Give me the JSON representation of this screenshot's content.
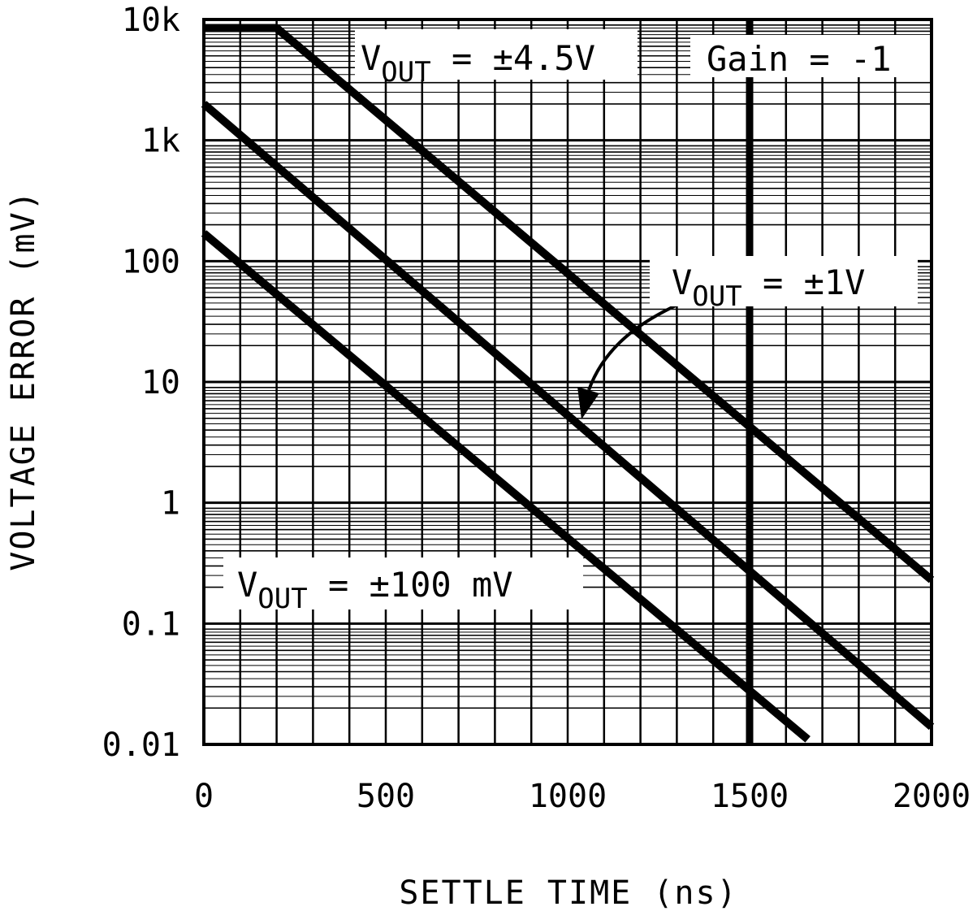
{
  "chart_data": {
    "type": "line",
    "title": "",
    "xlabel": "SETTLE TIME (ns)",
    "ylabel": "VOLTAGE ERROR (mV)",
    "xlim": [
      0,
      2000
    ],
    "ylim": [
      0.01,
      10000
    ],
    "yscale": "log",
    "grid": true,
    "x_ticks": [
      0,
      500,
      1000,
      1500,
      2000
    ],
    "x_tick_labels": [
      "0",
      "500",
      "1000",
      "1500",
      "2000"
    ],
    "y_ticks": [
      0.01,
      0.1,
      1,
      10,
      100,
      1000,
      10000
    ],
    "y_tick_labels": [
      "0.01",
      "0.1",
      "1",
      "10",
      "100",
      "1k",
      "10k"
    ],
    "marker_line": {
      "x": 1500,
      "label": "Gain = -1"
    },
    "series": [
      {
        "name": "V_OUT = ±4.5V",
        "main": "V",
        "subscript": "OUT",
        "rest": " = ±4.5V",
        "x": [
          0,
          200,
          2000
        ],
        "y": [
          8500,
          8500,
          0.23
        ]
      },
      {
        "name": "V_OUT = ±1V",
        "main": "V",
        "subscript": "OUT",
        "rest": " = ±1V",
        "x": [
          0,
          2000
        ],
        "y": [
          2000,
          0.014
        ]
      },
      {
        "name": "V_OUT = ±100 mV",
        "main": "V",
        "subscript": "OUT",
        "rest": " = ±100 mV",
        "x": [
          0,
          1660
        ],
        "y": [
          170,
          0.011
        ]
      }
    ]
  }
}
